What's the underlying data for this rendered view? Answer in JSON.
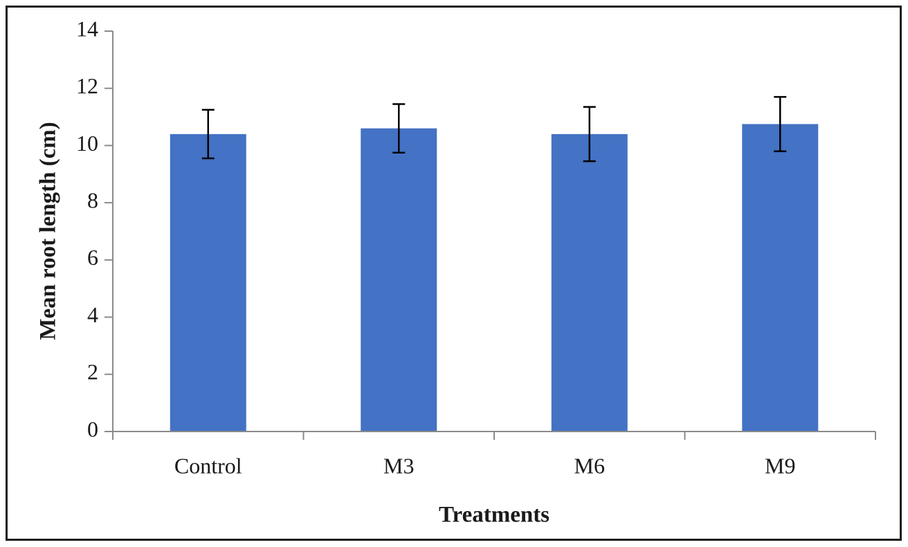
{
  "chart_data": {
    "type": "bar",
    "title": "",
    "xlabel": "Treatments",
    "ylabel": "Mean root length (cm)",
    "categories": [
      "Control",
      "M3",
      "M6",
      "M9"
    ],
    "values": [
      10.4,
      10.6,
      10.4,
      10.75
    ],
    "error_bars": [
      0.85,
      0.85,
      0.95,
      0.95
    ],
    "ylim": [
      0,
      14
    ],
    "yticks": [
      0,
      2,
      4,
      6,
      8,
      10,
      12,
      14
    ],
    "grid": false,
    "legend": false,
    "bar_color": "#4472C4",
    "axis_color": "#8a8a8a",
    "error_bar_color": "#000000",
    "text_color": "#1a1a1a",
    "frame_color": "#1a1a1a",
    "background_color": "#ffffff"
  }
}
